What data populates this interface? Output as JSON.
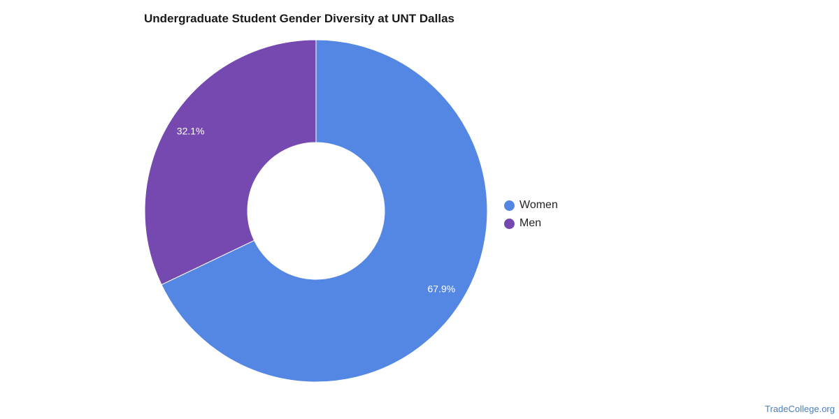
{
  "chart_data": {
    "type": "pie",
    "title": "Undergraduate Student Gender Diversity at UNT Dallas",
    "categories": [
      "Women",
      "Men"
    ],
    "values": [
      67.9,
      32.1
    ],
    "value_labels": [
      "67.9%",
      "32.1%"
    ],
    "colors": [
      "#5486e3",
      "#7649b0"
    ],
    "donut": true,
    "legend_position": "right"
  },
  "watermark": "TradeCollege.org"
}
